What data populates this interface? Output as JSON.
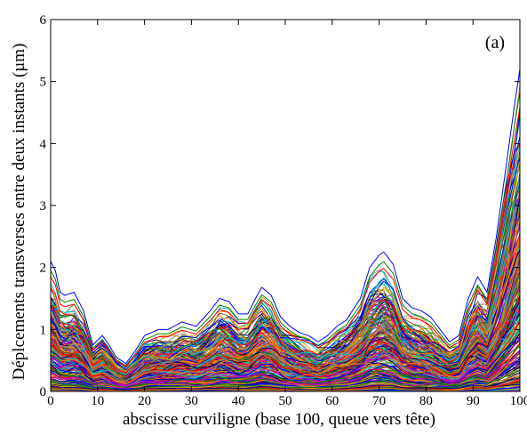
{
  "chart_data": {
    "type": "line",
    "title": "",
    "xlabel": "abscisse curviligne (base 100, queue vers tête)",
    "ylabel": "Déplcements transverses entre deux instants (µm)",
    "annotation": "(a)",
    "xlim": [
      0,
      100
    ],
    "ylim": [
      0,
      6
    ],
    "xticks": [
      0,
      10,
      20,
      30,
      40,
      50,
      60,
      70,
      80,
      90,
      100
    ],
    "yticks": [
      0,
      1,
      2,
      3,
      4,
      5,
      6
    ],
    "grid": false,
    "legend": "none",
    "series_count_estimate": 300,
    "envelope": {
      "x": [
        0,
        1,
        2,
        3,
        5,
        7,
        9,
        11,
        12,
        14,
        16,
        18,
        20,
        23,
        25,
        28,
        31,
        34,
        36,
        38,
        40,
        42,
        44,
        45,
        47,
        49,
        51,
        53,
        55,
        57,
        59,
        61,
        63,
        66,
        68,
        70,
        71,
        73,
        75,
        77,
        79,
        81,
        83,
        85,
        87,
        89,
        91,
        93,
        95,
        97,
        99,
        100
      ],
      "y": [
        2.1,
        1.95,
        1.6,
        1.55,
        1.6,
        1.3,
        0.75,
        0.9,
        0.8,
        0.55,
        0.45,
        0.65,
        0.9,
        1.0,
        1.0,
        1.12,
        1.05,
        1.3,
        1.5,
        1.45,
        1.25,
        1.25,
        1.55,
        1.68,
        1.55,
        1.2,
        1.05,
        0.95,
        0.9,
        0.8,
        0.9,
        1.05,
        1.15,
        1.5,
        2.0,
        2.2,
        2.25,
        2.05,
        1.5,
        1.35,
        1.3,
        1.2,
        1.0,
        0.8,
        0.9,
        1.5,
        1.85,
        1.6,
        2.5,
        3.6,
        4.7,
        5.2
      ]
    },
    "highlighted_series": [
      {
        "color": "#0000ff",
        "peaks": {
          "x": [
            0,
            45,
            71,
            100
          ],
          "y": [
            2.1,
            1.68,
            2.25,
            5.2
          ]
        }
      },
      {
        "color": "#008000",
        "peaks": {
          "x": [
            0,
            45,
            71,
            100
          ],
          "y": [
            1.95,
            1.45,
            2.05,
            4.7
          ]
        }
      },
      {
        "color": "#ff0000",
        "peaks": {
          "x": [
            0,
            45,
            71,
            100
          ],
          "y": [
            1.85,
            1.3,
            1.85,
            4.3
          ]
        }
      }
    ],
    "palette": [
      "#0000ff",
      "#ff0000",
      "#008000",
      "#00c0c0",
      "#c000c0",
      "#d4a000",
      "#ff7f00",
      "#808080",
      "#000080",
      "#8b4513"
    ]
  }
}
